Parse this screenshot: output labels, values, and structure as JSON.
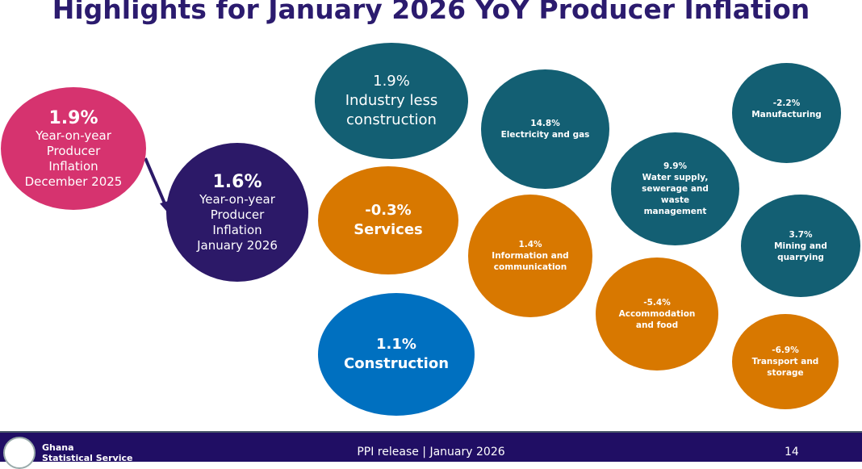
{
  "title": "Highlights for January 2026 YoY Producer Inflation",
  "colors": {
    "teal": "#135F73",
    "orange": "#D87800",
    "blue": "#0070C0",
    "pink": "#D6336F",
    "purple": "#2C1968",
    "footer": "#200E64"
  },
  "headline": {
    "dec": {
      "value": "1.9%",
      "label": [
        "Year-on-year",
        "Producer",
        "Inflation",
        "December 2025"
      ]
    },
    "jan": {
      "value": "1.6%",
      "label": [
        "Year-on-year",
        "Producer",
        "Inflation",
        "January 2026"
      ]
    }
  },
  "groups": {
    "industry": {
      "value": "1.9%",
      "label": [
        "Industry less",
        "construction"
      ]
    },
    "services": {
      "value": "-0.3%",
      "label": "Services"
    },
    "construction": {
      "value": "1.1%",
      "label": "Construction"
    }
  },
  "sectors": {
    "electricity": {
      "value": "14.8%",
      "label": [
        "Electricity and gas"
      ]
    },
    "water": {
      "value": "9.9%",
      "label": [
        "Water supply,",
        "sewerage and",
        "waste",
        "management"
      ]
    },
    "manufacturing": {
      "value": "-2.2%",
      "label": [
        "Manufacturing"
      ]
    },
    "information": {
      "value": "1.4%",
      "label": [
        "Information and",
        "communication"
      ]
    },
    "mining": {
      "value": "3.7%",
      "label": [
        "Mining and",
        "quarrying"
      ]
    },
    "accommodation": {
      "value": "-5.4%",
      "label": [
        "Accommodation",
        "and food"
      ]
    },
    "transport": {
      "value": "-6.9%",
      "label": [
        "Transport and",
        "storage"
      ]
    }
  },
  "footer": {
    "org": [
      "Ghana",
      "Statistical Service"
    ],
    "center": "PPI release | January 2026",
    "page": "14"
  }
}
